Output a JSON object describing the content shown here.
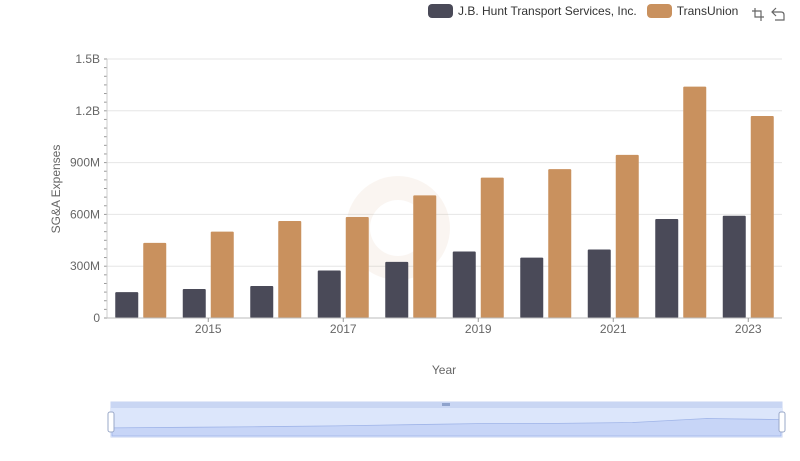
{
  "legend": {
    "series_a": "J.B. Hunt Transport Services, Inc.",
    "series_b": "TransUnion"
  },
  "toolbar": {
    "icons": [
      "restore-zoom-icon",
      "back-icon"
    ]
  },
  "colors": {
    "series_a": "#4a4a58",
    "series_b": "#c9915e",
    "grid": "#e6e6e6",
    "zoom_fill": "#dce6fb",
    "zoom_border": "#c7d3f0"
  },
  "chart_data": {
    "type": "bar",
    "xlabel": "Year",
    "ylabel": "SG&A Expenses",
    "x_ticks": [
      "2015",
      "2017",
      "2019",
      "2021",
      "2023"
    ],
    "y_ticks": [
      "0",
      "300M",
      "600M",
      "900M",
      "1.2B",
      "1.5B"
    ],
    "ylim": [
      0,
      1500000000
    ],
    "grid": true,
    "legend_position": "top-right",
    "categories": [
      2014,
      2015,
      2016,
      2017,
      2018,
      2019,
      2020,
      2021,
      2022,
      2023
    ],
    "series": [
      {
        "name": "J.B. Hunt Transport Services, Inc.",
        "values": [
          150000000,
          168000000,
          185000000,
          275000000,
          325000000,
          385000000,
          350000000,
          397000000,
          573000000,
          592000000
        ]
      },
      {
        "name": "TransUnion",
        "values": [
          435000000,
          500000000,
          562000000,
          585000000,
          710000000,
          813000000,
          862000000,
          945000000,
          1340000000,
          1170000000
        ]
      }
    ]
  }
}
